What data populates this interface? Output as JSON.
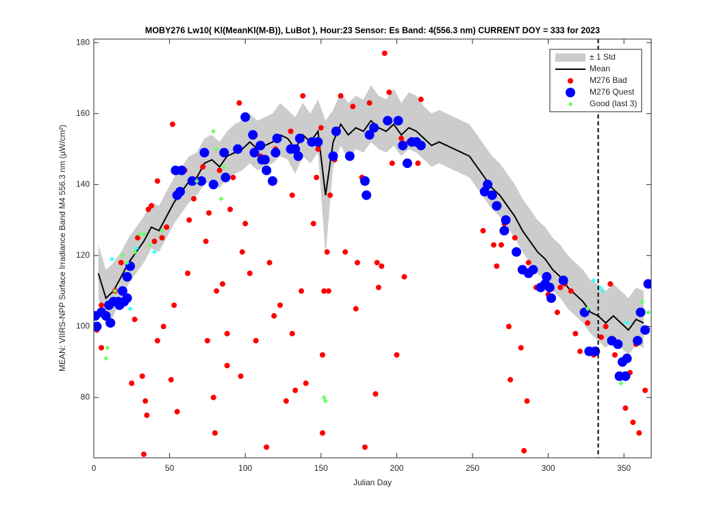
{
  "chart_data": {
    "type": "scatter",
    "title": "MOBY276   Lw10( Kl(MeanKl(M-B)), LuBot ),    Hour:23 Sensor: Es Band: 4(556.3 nm)   CURRENT DOY = 333 for 2023",
    "xlabel": "Julian Day",
    "ylabel": "MEAN: VIIRS-NPP Surface Irradiance Band M4 556.3 nm (µW/cm²)",
    "xlim": [
      0,
      368
    ],
    "ylim": [
      63,
      181
    ],
    "xticks": [
      0,
      50,
      100,
      150,
      200,
      250,
      300,
      350
    ],
    "yticks": [
      80,
      100,
      120,
      140,
      160,
      180
    ],
    "vline": 333,
    "legend_position": "upper right",
    "band": {
      "name": "± 1 Std",
      "color": "#cccccc",
      "x": [
        3,
        8,
        13,
        18,
        23,
        28,
        33,
        38,
        43,
        48,
        53,
        58,
        63,
        68,
        73,
        78,
        83,
        88,
        93,
        98,
        103,
        108,
        113,
        118,
        123,
        128,
        133,
        138,
        143,
        148,
        153,
        158,
        163,
        168,
        173,
        178,
        183,
        188,
        193,
        198,
        203,
        208,
        213,
        218,
        223,
        228,
        233,
        238,
        243,
        248,
        253,
        258,
        263,
        268,
        273,
        278,
        283,
        288,
        293,
        298,
        303,
        308,
        313,
        318,
        323,
        328,
        333,
        338,
        343,
        348,
        353,
        358,
        363
      ],
      "lower": [
        108,
        100,
        103,
        108,
        112,
        115,
        118,
        122,
        121,
        125,
        129,
        132,
        135,
        137,
        140,
        141,
        139,
        142,
        143,
        144,
        146,
        144,
        145,
        146,
        148,
        147,
        143,
        148,
        146,
        149,
        120,
        145,
        151,
        147,
        150,
        149,
        152,
        150,
        149,
        151,
        148,
        150,
        149,
        147,
        145,
        146,
        145,
        144,
        143,
        142,
        139,
        136,
        133,
        131,
        128,
        125,
        121,
        118,
        115,
        113,
        110,
        108,
        105,
        103,
        101,
        98,
        96,
        94,
        96,
        94,
        92,
        95,
        94
      ],
      "upper": [
        123,
        116,
        118,
        121,
        125,
        128,
        131,
        135,
        134,
        138,
        142,
        145,
        148,
        149,
        153,
        154,
        152,
        155,
        157,
        158,
        160,
        158,
        159,
        160,
        163,
        161,
        159,
        163,
        160,
        164,
        158,
        161,
        166,
        163,
        165,
        164,
        168,
        165,
        164,
        167,
        163,
        166,
        165,
        162,
        160,
        161,
        160,
        159,
        158,
        157,
        154,
        151,
        148,
        146,
        143,
        140,
        136,
        133,
        130,
        128,
        125,
        123,
        120,
        118,
        116,
        113,
        112,
        110,
        112,
        110,
        108,
        111,
        110
      ]
    },
    "series": [
      {
        "name": "Mean",
        "type": "line",
        "color": "#000000",
        "x": [
          3,
          8,
          13,
          18,
          23,
          28,
          33,
          38,
          43,
          48,
          53,
          58,
          63,
          68,
          73,
          78,
          83,
          88,
          93,
          98,
          103,
          108,
          113,
          118,
          123,
          128,
          133,
          138,
          143,
          148,
          153,
          158,
          163,
          168,
          173,
          178,
          183,
          188,
          193,
          198,
          203,
          208,
          213,
          218,
          223,
          228,
          233,
          238,
          243,
          248,
          253,
          258,
          263,
          268,
          273,
          278,
          283,
          288,
          293,
          298,
          303,
          308,
          313,
          318,
          323,
          328,
          333,
          338,
          343,
          348,
          353,
          358,
          363
        ],
        "y": [
          115,
          108,
          110,
          114,
          118,
          121,
          124,
          128,
          127,
          131,
          135,
          138,
          141,
          142,
          146,
          147,
          145,
          148,
          149,
          150,
          152,
          150,
          151,
          152,
          154,
          153,
          150,
          154,
          152,
          155,
          137,
          152,
          157,
          154,
          156,
          155,
          158,
          156,
          155,
          157,
          154,
          156,
          155,
          153,
          151,
          152,
          151,
          150,
          149,
          148,
          145,
          142,
          139,
          137,
          134,
          131,
          127,
          124,
          121,
          119,
          116,
          114,
          111,
          109,
          107,
          104,
          103,
          101,
          103,
          101,
          99,
          102,
          101
        ]
      },
      {
        "name": "M276 Bad",
        "type": "scatter",
        "marker": "circle",
        "color": "#ff0000",
        "x": [
          2,
          5,
          5,
          14,
          18,
          25,
          27,
          29,
          32,
          33,
          34,
          35,
          36,
          38,
          40,
          42,
          42,
          45,
          46,
          48,
          51,
          52,
          53,
          55,
          60,
          62,
          63,
          66,
          72,
          74,
          75,
          76,
          79,
          80,
          81,
          83,
          85,
          88,
          88,
          90,
          92,
          96,
          97,
          98,
          100,
          103,
          107,
          110,
          114,
          116,
          119,
          120,
          123,
          127,
          130,
          131,
          131,
          133,
          137,
          138,
          140,
          145,
          147,
          148,
          150,
          151,
          151,
          152,
          154,
          155,
          156,
          159,
          163,
          166,
          169,
          171,
          173,
          174,
          177,
          179,
          182,
          186,
          187,
          188,
          190,
          192,
          195,
          197,
          200,
          203,
          205,
          208,
          214,
          216,
          257,
          264,
          266,
          269,
          271,
          274,
          275,
          278,
          282,
          284,
          286,
          287,
          292,
          295,
          300,
          306,
          308,
          311,
          315,
          318,
          321,
          326,
          330,
          335,
          338,
          341,
          344,
          350,
          351,
          354,
          356,
          358,
          360,
          364
        ],
        "y": [
          99,
          94,
          106,
          110,
          118,
          84,
          102,
          125,
          86,
          64,
          79,
          75,
          133,
          134,
          124,
          96,
          141,
          125,
          100,
          128,
          85,
          157,
          106,
          76,
          144,
          115,
          130,
          136,
          145,
          124,
          96,
          132,
          80,
          70,
          110,
          144,
          112,
          98,
          89,
          133,
          142,
          163,
          86,
          121,
          129,
          115,
          96,
          148,
          66,
          118,
          103,
          150,
          106,
          79,
          155,
          98,
          137,
          82,
          110,
          165,
          84,
          129,
          142,
          150,
          156,
          70,
          92,
          110,
          121,
          110,
          137,
          147,
          165,
          121,
          148,
          162,
          105,
          118,
          142,
          66,
          163,
          81,
          118,
          111,
          117,
          177,
          166,
          146,
          92,
          153,
          114,
          152,
          146,
          164,
          127,
          123,
          117,
          123,
          129,
          100,
          85,
          125,
          94,
          65,
          79,
          118,
          111,
          111,
          109,
          104,
          111,
          112,
          110,
          98,
          93,
          101,
          92,
          97,
          100,
          112,
          92,
          90,
          77,
          87,
          73,
          95,
          70,
          82
        ]
      },
      {
        "name": "M276 Quest",
        "type": "scatter",
        "marker": "circle-large",
        "color": "#0000ff",
        "x": [
          1,
          2,
          5,
          8,
          10,
          11,
          13,
          16,
          17,
          19,
          20,
          22,
          22,
          24,
          54,
          55,
          57,
          58,
          65,
          71,
          73,
          79,
          86,
          87,
          95,
          100,
          105,
          106,
          110,
          111,
          113,
          114,
          118,
          120,
          121,
          130,
          133,
          135,
          136,
          144,
          148,
          158,
          160,
          169,
          179,
          180,
          182,
          185,
          194,
          201,
          204,
          207,
          210,
          213,
          216,
          258,
          260,
          263,
          266,
          271,
          272,
          279,
          283,
          287,
          290,
          295,
          298,
          299,
          301,
          302,
          310,
          324,
          327,
          331,
          342,
          346,
          347,
          349,
          351,
          352,
          359,
          361,
          364,
          366
        ],
        "y": [
          103,
          100,
          104,
          103,
          106,
          101,
          107,
          107,
          106,
          110,
          107,
          108,
          114,
          117,
          144,
          137,
          138,
          144,
          141,
          141,
          149,
          140,
          149,
          142,
          150,
          159,
          154,
          149,
          151,
          147,
          147,
          144,
          141,
          149,
          153,
          150,
          150,
          148,
          153,
          152,
          152,
          148,
          155,
          148,
          141,
          137,
          154,
          156,
          158,
          158,
          151,
          146,
          152,
          152,
          151,
          138,
          140,
          137,
          134,
          127,
          130,
          121,
          116,
          115,
          116,
          111,
          112,
          114,
          111,
          108,
          113,
          104,
          93,
          93,
          96,
          95,
          86,
          90,
          86,
          91,
          96,
          104,
          99,
          112
        ]
      },
      {
        "name": "Good (last 3)",
        "type": "scatter",
        "marker": "diamond",
        "color": "#66ff66",
        "x": [
          8,
          9,
          14,
          19,
          22,
          27,
          30,
          33,
          37,
          45,
          68,
          79,
          81,
          84,
          86,
          152,
          153,
          326,
          348,
          362,
          366
        ],
        "y": [
          91,
          94,
          110,
          120,
          118,
          121,
          126,
          126,
          123,
          127,
          141,
          155,
          150,
          136,
          145,
          80,
          79,
          105,
          84,
          107,
          104
        ]
      },
      {
        "type": "scatter",
        "marker": "diamond",
        "color": "#33ffff",
        "x": [
          12,
          24,
          28,
          40,
          330,
          334,
          336,
          352
        ],
        "y": [
          119,
          105,
          122,
          121,
          113,
          111,
          110,
          101
        ]
      }
    ]
  }
}
